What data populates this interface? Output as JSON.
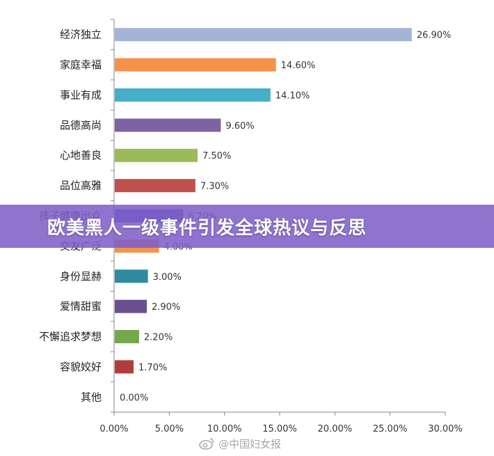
{
  "banner": {
    "title": "欧美黑人一级事件引发全球热议与反思"
  },
  "watermark": {
    "text": "@中国妇女报",
    "icon": "weibo-icon"
  },
  "chart_data": {
    "type": "bar",
    "orientation": "horizontal",
    "categories": [
      "经济独立",
      "家庭幸福",
      "事业有成",
      "品德高尚",
      "心地善良",
      "品位高雅",
      "孩子健康出众",
      "交友广泛",
      "身份显赫",
      "爱情甜蜜",
      "不懈追求梦想",
      "容貌姣好",
      "其他"
    ],
    "values": [
      26.9,
      14.6,
      14.1,
      9.6,
      7.5,
      7.3,
      6.2,
      4.0,
      3.0,
      2.9,
      2.2,
      1.7,
      0.0
    ],
    "value_labels": [
      "26.90%",
      "14.60%",
      "14.10%",
      "9.60%",
      "7.50%",
      "7.30%",
      "6.20%",
      "4.00%",
      "3.00%",
      "2.90%",
      "2.20%",
      "1.70%",
      "0.00%"
    ],
    "colors": [
      "#a5b4d6",
      "#f5924a",
      "#46aec6",
      "#7f62a2",
      "#9bbb59",
      "#c0504d",
      "#4a50c0",
      "#f5924a",
      "#2f8ba0",
      "#6a4f8f",
      "#74a84a",
      "#b03d3d",
      "#999999"
    ],
    "xlim": [
      0,
      30
    ],
    "xticks": [
      0,
      5,
      10,
      15,
      20,
      25,
      30
    ],
    "xtick_labels": [
      "0.00%",
      "5.00%",
      "10.00%",
      "15.00%",
      "20.00%",
      "25.00%",
      "30.00%"
    ],
    "grid": false
  }
}
